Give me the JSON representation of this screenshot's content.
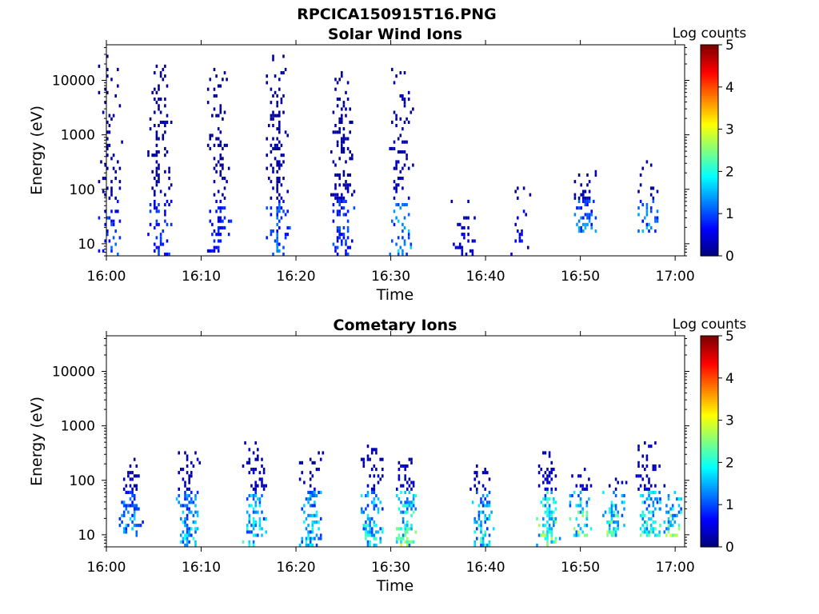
{
  "figure": {
    "title": "RPCICA150915T16.PNG"
  },
  "chart_data": [
    {
      "type": "heatmap",
      "title": "Solar Wind Ions",
      "xlabel": "Time",
      "ylabel": "Energy (eV)",
      "x_ticks": [
        "16:00",
        "16:10",
        "16:20",
        "16:30",
        "16:40",
        "16:50",
        "17:00"
      ],
      "x_range_minutes": [
        0,
        61
      ],
      "y_scale": "log",
      "y_ticks": [
        "10",
        "100",
        "1000",
        "10000"
      ],
      "y_range": [
        6,
        45000
      ],
      "colorbar": {
        "title": "Log counts",
        "range": [
          0,
          5
        ],
        "ticks": [
          "0",
          "1",
          "2",
          "3",
          "4",
          "5"
        ],
        "colormap": "jet"
      },
      "bursts": [
        {
          "t": 0.3,
          "e_low": 6,
          "e_high": 30000,
          "peak_log": 1.2,
          "density": 0.3
        },
        {
          "t": 5.5,
          "e_low": 6,
          "e_high": 20000,
          "peak_log": 1.1,
          "density": 0.45
        },
        {
          "t": 11.8,
          "e_low": 6,
          "e_high": 15000,
          "peak_log": 1.0,
          "density": 0.45
        },
        {
          "t": 18.0,
          "e_low": 6,
          "e_high": 35000,
          "peak_log": 1.4,
          "density": 0.5
        },
        {
          "t": 24.8,
          "e_low": 6,
          "e_high": 20000,
          "peak_log": 1.2,
          "density": 0.5
        },
        {
          "t": 31.0,
          "e_low": 6,
          "e_high": 15000,
          "peak_log": 1.8,
          "density": 0.35
        },
        {
          "t": 37.5,
          "e_low": 6,
          "e_high": 60,
          "peak_log": 0.6,
          "density": 0.3
        },
        {
          "t": 43.8,
          "e_low": 6,
          "e_high": 150,
          "peak_log": 0.8,
          "density": 0.3
        },
        {
          "t": 50.5,
          "e_low": 15,
          "e_high": 200,
          "peak_log": 1.6,
          "density": 0.45
        },
        {
          "t": 57.0,
          "e_low": 15,
          "e_high": 400,
          "peak_log": 1.7,
          "density": 0.45
        }
      ]
    },
    {
      "type": "heatmap",
      "title": "Cometary Ions",
      "xlabel": "Time",
      "ylabel": "Energy (eV)",
      "x_ticks": [
        "16:00",
        "16:10",
        "16:20",
        "16:30",
        "16:40",
        "16:50",
        "17:00"
      ],
      "x_range_minutes": [
        0,
        61
      ],
      "y_scale": "log",
      "y_ticks": [
        "10",
        "100",
        "1000",
        "10000"
      ],
      "y_range": [
        6,
        45000
      ],
      "colorbar": {
        "title": "Log counts",
        "range": [
          0,
          5
        ],
        "ticks": [
          "0",
          "1",
          "2",
          "3",
          "4",
          "5"
        ],
        "colormap": "jet"
      },
      "bursts": [
        {
          "t": 2.5,
          "e_low": 8,
          "e_high": 250,
          "peak_log": 2.0,
          "density": 0.7
        },
        {
          "t": 8.5,
          "e_low": 6,
          "e_high": 300,
          "peak_log": 2.2,
          "density": 0.7
        },
        {
          "t": 15.5,
          "e_low": 6,
          "e_high": 500,
          "peak_log": 2.4,
          "density": 0.7
        },
        {
          "t": 21.5,
          "e_low": 6,
          "e_high": 300,
          "peak_log": 2.3,
          "density": 0.7
        },
        {
          "t": 28.0,
          "e_low": 6,
          "e_high": 400,
          "peak_log": 2.5,
          "density": 0.7
        },
        {
          "t": 31.5,
          "e_low": 6,
          "e_high": 250,
          "peak_log": 3.0,
          "density": 0.7
        },
        {
          "t": 39.5,
          "e_low": 6,
          "e_high": 200,
          "peak_log": 2.4,
          "density": 0.7
        },
        {
          "t": 46.5,
          "e_low": 6,
          "e_high": 300,
          "peak_log": 3.0,
          "density": 0.7
        },
        {
          "t": 50.0,
          "e_low": 8,
          "e_high": 150,
          "peak_log": 3.1,
          "density": 0.7
        },
        {
          "t": 53.5,
          "e_low": 8,
          "e_high": 100,
          "peak_log": 3.1,
          "density": 0.7
        },
        {
          "t": 57.0,
          "e_low": 8,
          "e_high": 500,
          "peak_log": 2.6,
          "density": 0.7
        },
        {
          "t": 59.5,
          "e_low": 8,
          "e_high": 80,
          "peak_log": 3.2,
          "density": 0.7
        }
      ]
    }
  ]
}
